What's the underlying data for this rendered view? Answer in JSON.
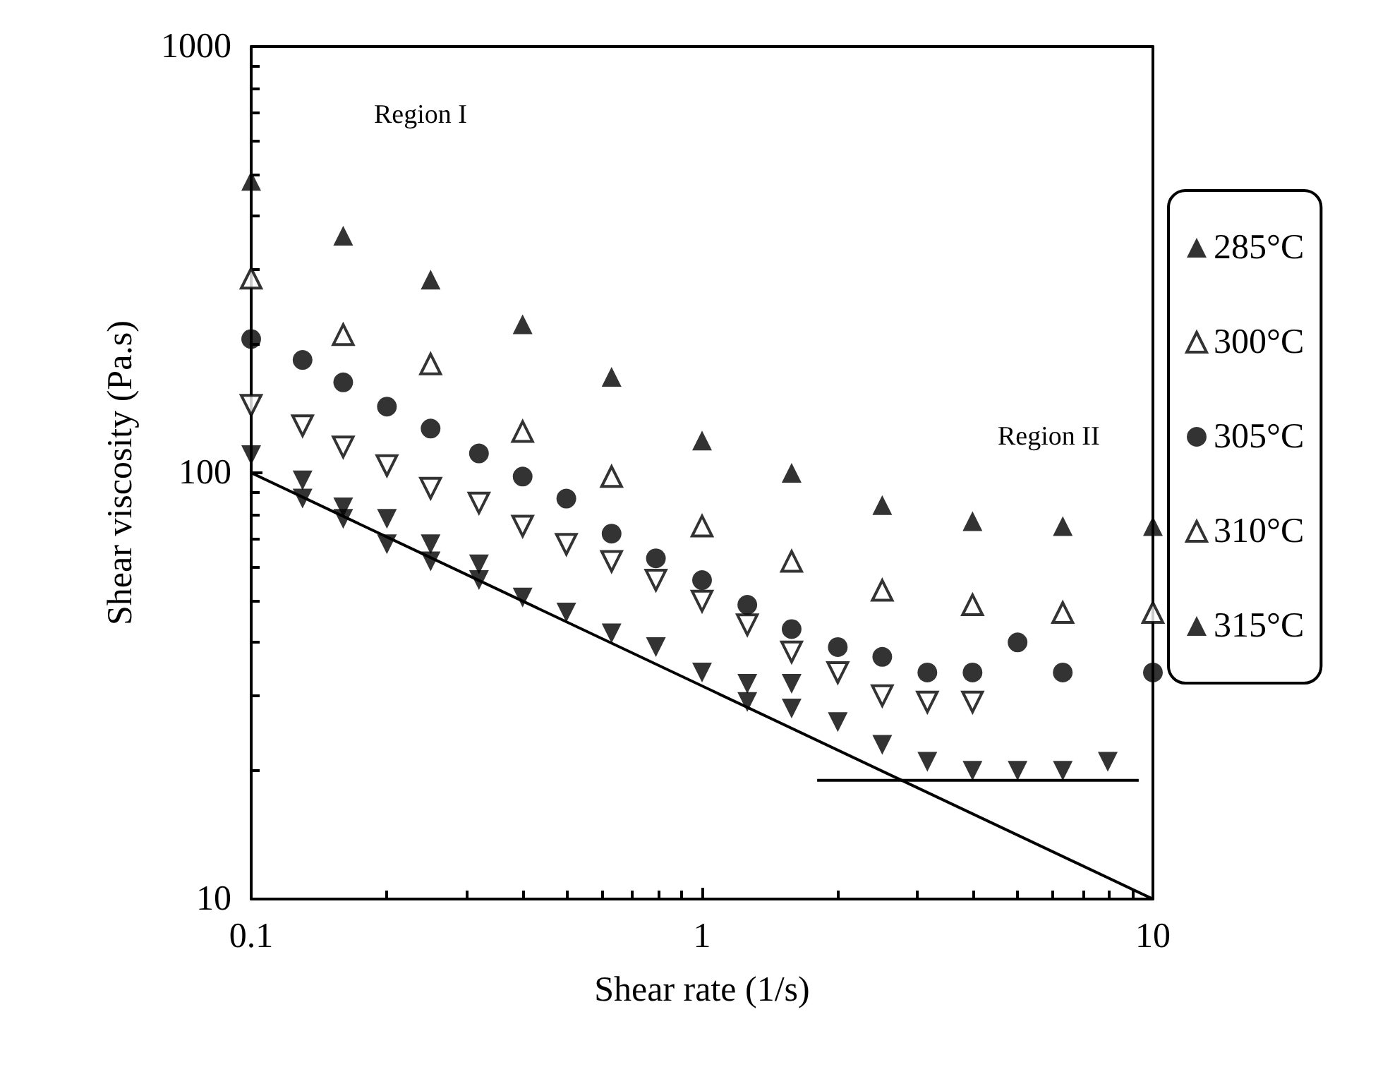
{
  "chart_data": {
    "type": "scatter",
    "xlabel": "Shear rate (1/s)",
    "ylabel": "Shear viscosity (Pa.s)",
    "log": "xy",
    "grid": false,
    "legend": "right",
    "xlim": [
      0.1,
      10
    ],
    "xticks": [
      0.1,
      1,
      10
    ],
    "ylim": [
      10,
      1000
    ],
    "yticks": [
      10,
      100,
      1000
    ],
    "annotations": [
      "Region I",
      "Region II"
    ],
    "series": [
      {
        "name": "285°C",
        "color": "#000000",
        "marker": "triangle",
        "x": [
          0.1,
          0.16,
          0.25,
          0.4,
          0.63,
          1,
          1.58,
          2.51,
          3.98,
          6.31,
          10
        ],
        "values": [
          484,
          360,
          284,
          223,
          168,
          119,
          100,
          84,
          77,
          75,
          75
        ]
      },
      {
        "name": "300°C",
        "color": "#000000",
        "marker": "triangle-open",
        "x": [
          0.1,
          0.16,
          0.25,
          0.4,
          0.63,
          1,
          1.58,
          2.51,
          3.98,
          6.31,
          10
        ],
        "values": [
          286,
          211,
          180,
          125,
          98,
          75,
          62,
          53,
          49,
          47,
          47
        ]
      },
      {
        "name": "305°C",
        "color": "#000000",
        "marker": "circle",
        "x": [
          0.1,
          0.13,
          0.16,
          0.2,
          0.25,
          0.32,
          0.4,
          0.5,
          0.63,
          0.79,
          1,
          1.26,
          1.58,
          2,
          2.51,
          3.16,
          3.98,
          5.01,
          6.31,
          10
        ],
        "values": [
          206,
          184,
          163,
          143,
          127,
          111,
          98,
          87,
          72,
          63,
          56,
          49,
          43,
          39,
          37,
          34,
          34,
          40,
          34,
          34
        ]
      },
      {
        "name": "310°C",
        "color": "#000000",
        "marker": "triangle-down-open",
        "x": [
          0.1,
          0.13,
          0.16,
          0.2,
          0.25,
          0.32,
          0.4,
          0.5,
          0.63,
          0.79,
          1,
          1.26,
          1.58,
          2,
          2.51,
          3.16,
          3.98
        ],
        "values": [
          144,
          129,
          115,
          104,
          92,
          85,
          75,
          68,
          62,
          56,
          50,
          44,
          38,
          34,
          30,
          29,
          29
        ]
      },
      {
        "name": "315°C",
        "color": "#000000",
        "marker": "triangle-down",
        "x": [
          0.1,
          0.13,
          0.13,
          0.16,
          0.16,
          0.2,
          0.2,
          0.25,
          0.25,
          0.32,
          0.32,
          0.4,
          0.5,
          0.63,
          0.79,
          1,
          1.26,
          1.26,
          1.58,
          1.58,
          2,
          2.51,
          3.16,
          3.98,
          5.01,
          6.31,
          7.94
        ],
        "values": [
          110,
          96,
          87,
          83,
          78,
          78,
          68,
          68,
          62,
          61,
          56,
          51,
          47,
          42,
          39,
          34,
          32,
          29,
          32,
          28,
          26,
          23,
          21,
          20,
          20,
          20,
          21
        ]
      },
      {
        "type": "line",
        "color": "#000000",
        "x": [
          0.1,
          10
        ],
        "values": [
          100,
          10
        ]
      },
      {
        "type": "line",
        "color": "#000000",
        "x": [
          1.8,
          9.3
        ],
        "values": [
          19,
          19
        ]
      }
    ]
  }
}
